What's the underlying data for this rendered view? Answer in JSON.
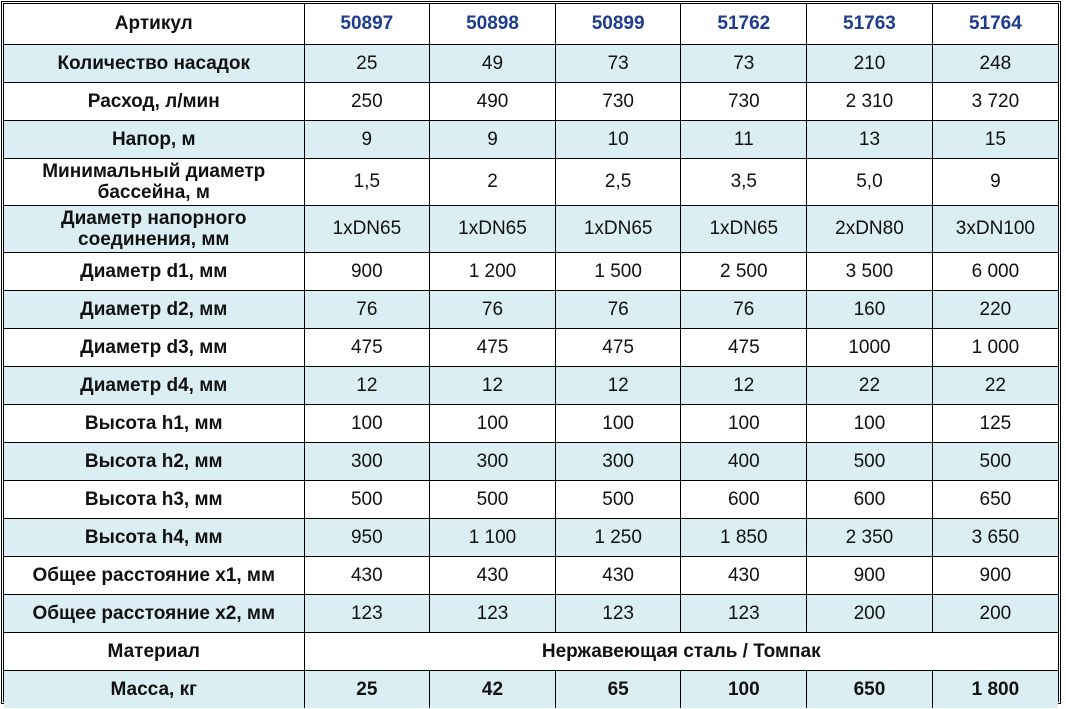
{
  "header": {
    "label": "Артикул",
    "articles": [
      "50897",
      "50898",
      "50899",
      "51762",
      "51763",
      "51764"
    ]
  },
  "rows": [
    {
      "label": "Количество насадок",
      "values": [
        "25",
        "49",
        "73",
        "73",
        "210",
        "248"
      ]
    },
    {
      "label": "Расход, л/мин",
      "values": [
        "250",
        "490",
        "730",
        "730",
        "2 310",
        "3 720"
      ]
    },
    {
      "label": "Напор, м",
      "values": [
        "9",
        "9",
        "10",
        "11",
        "13",
        "15"
      ]
    },
    {
      "label": "Минимальный диаметр бассейна, м",
      "values": [
        "1,5",
        "2",
        "2,5",
        "3,5",
        "5,0",
        "9"
      ]
    },
    {
      "label": "Диаметр напорного соединения, мм",
      "values": [
        "1xDN65",
        "1xDN65",
        "1xDN65",
        "1xDN65",
        "2xDN80",
        "3xDN100"
      ]
    },
    {
      "label": "Диаметр d1, мм",
      "values": [
        "900",
        "1 200",
        "1 500",
        "2 500",
        "3 500",
        "6 000"
      ]
    },
    {
      "label": "Диаметр d2, мм",
      "values": [
        "76",
        "76",
        "76",
        "76",
        "160",
        "220"
      ]
    },
    {
      "label": "Диаметр d3, мм",
      "values": [
        "475",
        "475",
        "475",
        "475",
        "1000",
        "1 000"
      ]
    },
    {
      "label": "Диаметр d4, мм",
      "values": [
        "12",
        "12",
        "12",
        "12",
        "22",
        "22"
      ]
    },
    {
      "label": "Высота h1, мм",
      "values": [
        "100",
        "100",
        "100",
        "100",
        "100",
        "125"
      ]
    },
    {
      "label": "Высота h2, мм",
      "values": [
        "300",
        "300",
        "300",
        "400",
        "500",
        "500"
      ]
    },
    {
      "label": "Высота h3, мм",
      "values": [
        "500",
        "500",
        "500",
        "600",
        "600",
        "650"
      ]
    },
    {
      "label": "Высота h4, мм",
      "values": [
        "950",
        "1 100",
        "1 250",
        "1 850",
        "2 350",
        "3 650"
      ]
    },
    {
      "label": "Общее расстояние x1, мм",
      "values": [
        "430",
        "430",
        "430",
        "430",
        "900",
        "900"
      ]
    },
    {
      "label": "Общее расстояние x2, мм",
      "values": [
        "123",
        "123",
        "123",
        "123",
        "200",
        "200"
      ]
    }
  ],
  "material": {
    "label": "Материал",
    "value": "Нержавеющая сталь / Томпак"
  },
  "mass": {
    "label": "Масса, кг",
    "values": [
      "25",
      "42",
      "65",
      "100",
      "650",
      "1 800"
    ]
  },
  "colors": {
    "header_text": "#1f3d8f",
    "alt_row": "#daeef3"
  }
}
